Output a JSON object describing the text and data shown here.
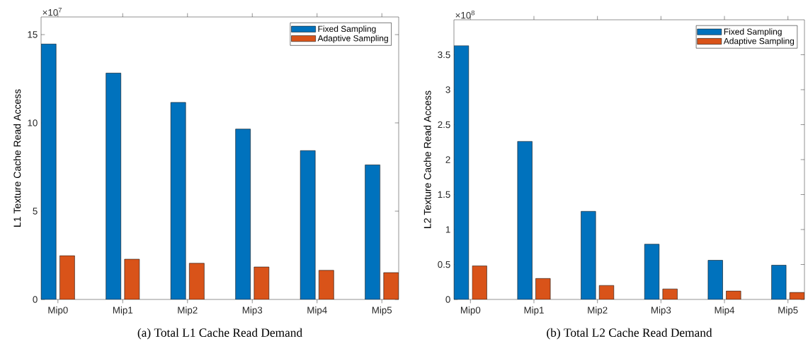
{
  "chart_data": [
    {
      "type": "bar",
      "title": "(a) Total L1 Cache Read Demand",
      "ylabel": "L1 Texture Cache Read Access",
      "categories": [
        "Mip0",
        "Mip1",
        "Mip2",
        "Mip3",
        "Mip4",
        "Mip5"
      ],
      "series": [
        {
          "name": "Fixed Sampling",
          "color": "#0072bd",
          "values": [
            14.47,
            12.82,
            11.16,
            9.65,
            8.43,
            7.62
          ]
        },
        {
          "name": "Adaptive Sampling",
          "color": "#d95319",
          "values": [
            2.48,
            2.28,
            2.05,
            1.84,
            1.65,
            1.52
          ]
        }
      ],
      "ylim": [
        0,
        16
      ],
      "yticks": [
        0,
        5,
        10,
        15
      ],
      "legend": "top right",
      "annotations": [
        "×10$^{7}$"
      ]
    },
    {
      "type": "bar",
      "title": "(b) Total L2 Cache Read Demand",
      "ylabel": "L2 Texture Cache Read Access",
      "categories": [
        "Mip0",
        "Mip1",
        "Mip2",
        "Mip3",
        "Mip4",
        "Mip5"
      ],
      "series": [
        {
          "name": "Fixed Sampling",
          "color": "#0072bd",
          "values": [
            3.63,
            2.26,
            1.26,
            0.79,
            0.56,
            0.49
          ]
        },
        {
          "name": "Adaptive Sampling",
          "color": "#d95319",
          "values": [
            0.48,
            0.3,
            0.2,
            0.15,
            0.12,
            0.1
          ]
        }
      ],
      "ylim": [
        0,
        4
      ],
      "yticks": [
        0,
        0.5,
        1,
        1.5,
        2,
        2.5,
        3,
        3.5
      ],
      "legend": "top right",
      "annotations": [
        "×10$^{8}$"
      ]
    }
  ]
}
